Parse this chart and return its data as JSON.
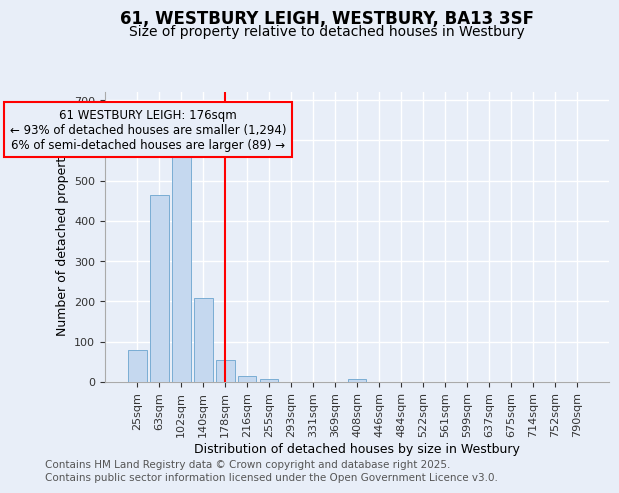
{
  "title1": "61, WESTBURY LEIGH, WESTBURY, BA13 3SF",
  "title2": "Size of property relative to detached houses in Westbury",
  "xlabel": "Distribution of detached houses by size in Westbury",
  "ylabel": "Number of detached properties",
  "categories": [
    "25sqm",
    "63sqm",
    "102sqm",
    "140sqm",
    "178sqm",
    "216sqm",
    "255sqm",
    "293sqm",
    "331sqm",
    "369sqm",
    "408sqm",
    "446sqm",
    "484sqm",
    "522sqm",
    "561sqm",
    "599sqm",
    "637sqm",
    "675sqm",
    "714sqm",
    "752sqm",
    "790sqm"
  ],
  "bar_values": [
    80,
    465,
    560,
    208,
    55,
    15,
    8,
    0,
    0,
    0,
    8,
    0,
    0,
    0,
    0,
    0,
    0,
    0,
    0,
    0,
    0
  ],
  "bar_color": "#c5d8ef",
  "bar_edge_color": "#7aadd4",
  "red_line_index": 4,
  "annotation_text": "61 WESTBURY LEIGH: 176sqm\n← 93% of detached houses are smaller (1,294)\n6% of semi-detached houses are larger (89) →",
  "ylim": [
    0,
    720
  ],
  "yticks": [
    0,
    100,
    200,
    300,
    400,
    500,
    600,
    700
  ],
  "footer1": "Contains HM Land Registry data © Crown copyright and database right 2025.",
  "footer2": "Contains public sector information licensed under the Open Government Licence v3.0.",
  "bg_color": "#e8eef8",
  "grid_color": "#ffffff",
  "title_fontsize": 12,
  "subtitle_fontsize": 10,
  "axis_label_fontsize": 9,
  "tick_fontsize": 8,
  "annotation_fontsize": 8.5,
  "footer_fontsize": 7.5
}
